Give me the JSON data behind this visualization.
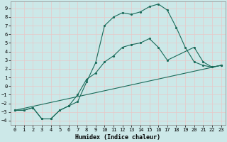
{
  "xlabel": "Humidex (Indice chaleur)",
  "background_color": "#cce8e8",
  "grid_color": "#b8d8d8",
  "line_color": "#1a6b5a",
  "xlim": [
    -0.5,
    23.5
  ],
  "ylim": [
    -4.5,
    9.8
  ],
  "xticks": [
    0,
    1,
    2,
    3,
    4,
    5,
    6,
    7,
    8,
    9,
    10,
    11,
    12,
    13,
    14,
    15,
    16,
    17,
    18,
    19,
    20,
    21,
    22,
    23
  ],
  "yticks": [
    -4,
    -3,
    -2,
    -1,
    0,
    1,
    2,
    3,
    4,
    5,
    6,
    7,
    8,
    9
  ],
  "series1_x": [
    0,
    1,
    2,
    3,
    4,
    5,
    6,
    7,
    8,
    9,
    10,
    11,
    12,
    13,
    14,
    15,
    16,
    17,
    18,
    19,
    20,
    21,
    22,
    23
  ],
  "series1_y": [
    -2.8,
    -2.8,
    -2.5,
    -3.8,
    -3.8,
    -2.8,
    -2.3,
    -1.8,
    0.5,
    2.7,
    7.0,
    8.0,
    8.5,
    8.3,
    8.6,
    9.2,
    9.5,
    8.8,
    6.8,
    4.5,
    2.8,
    2.4,
    2.2,
    2.4
  ],
  "series2_x": [
    0,
    1,
    2,
    3,
    4,
    5,
    6,
    7,
    8,
    9,
    10,
    11,
    12,
    13,
    14,
    15,
    16,
    17,
    20,
    21,
    22,
    23
  ],
  "series2_y": [
    -2.8,
    -2.8,
    -2.5,
    -3.8,
    -3.8,
    -2.8,
    -2.3,
    -1.0,
    0.8,
    1.5,
    2.8,
    3.5,
    4.5,
    4.8,
    5.0,
    5.5,
    4.5,
    3.0,
    4.5,
    2.8,
    2.2,
    2.4
  ],
  "series3_x": [
    0,
    23
  ],
  "series3_y": [
    -2.8,
    2.4
  ]
}
